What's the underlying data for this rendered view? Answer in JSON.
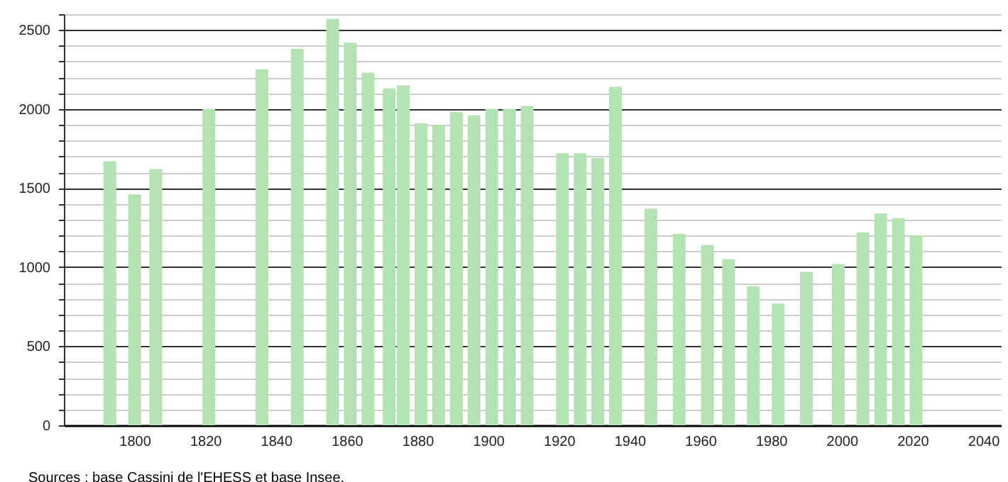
{
  "chart_data": {
    "type": "bar",
    "annotations": [
      "Sources : base Cassini de l'EHESS et base Insee."
    ],
    "x": [
      1793,
      1800,
      1806,
      1821,
      1836,
      1846,
      1856,
      1861,
      1866,
      1872,
      1876,
      1881,
      1886,
      1891,
      1896,
      1901,
      1906,
      1911,
      1921,
      1926,
      1931,
      1936,
      1946,
      1954,
      1962,
      1968,
      1975,
      1982,
      1990,
      1999,
      2006,
      2011,
      2016,
      2021
    ],
    "values": [
      1670,
      1460,
      1620,
      2000,
      2250,
      2380,
      2570,
      2420,
      2230,
      2130,
      2150,
      1910,
      1900,
      1980,
      1960,
      2000,
      2000,
      2020,
      1720,
      1720,
      1690,
      2140,
      1370,
      1210,
      1140,
      1050,
      880,
      770,
      970,
      1020,
      1220,
      1340,
      1310,
      1200
    ],
    "color": "#b3e3b3",
    "xlim": [
      1780,
      2045
    ],
    "xticks": [
      1800,
      1820,
      1840,
      1860,
      1880,
      1900,
      1920,
      1940,
      1960,
      1980,
      2000,
      2020,
      2040
    ],
    "ylim": [
      0,
      2600
    ],
    "yticks": [
      0,
      {
        "value": 100,
        "label": null
      },
      {
        "value": 200,
        "label": null
      },
      {
        "value": 300,
        "label": null
      },
      {
        "value": 400,
        "label": null
      },
      500,
      {
        "value": 600,
        "label": null
      },
      {
        "value": 700,
        "label": null
      },
      {
        "value": 800,
        "label": null
      },
      {
        "value": 900,
        "label": null
      },
      1000,
      {
        "value": 1100,
        "label": null
      },
      {
        "value": 1200,
        "label": null
      },
      {
        "value": 1300,
        "label": null
      },
      {
        "value": 1400,
        "label": null
      },
      1500,
      {
        "value": 1600,
        "label": null
      },
      {
        "value": 1700,
        "label": null
      },
      {
        "value": 1800,
        "label": null
      },
      {
        "value": 1900,
        "label": null
      },
      2000,
      {
        "value": 2100,
        "label": null
      },
      {
        "value": 2200,
        "label": null
      },
      {
        "value": 2300,
        "label": null
      },
      {
        "value": 2400,
        "label": null
      },
      2500,
      {
        "value": 2600,
        "label": null
      }
    ],
    "grid": "y"
  }
}
